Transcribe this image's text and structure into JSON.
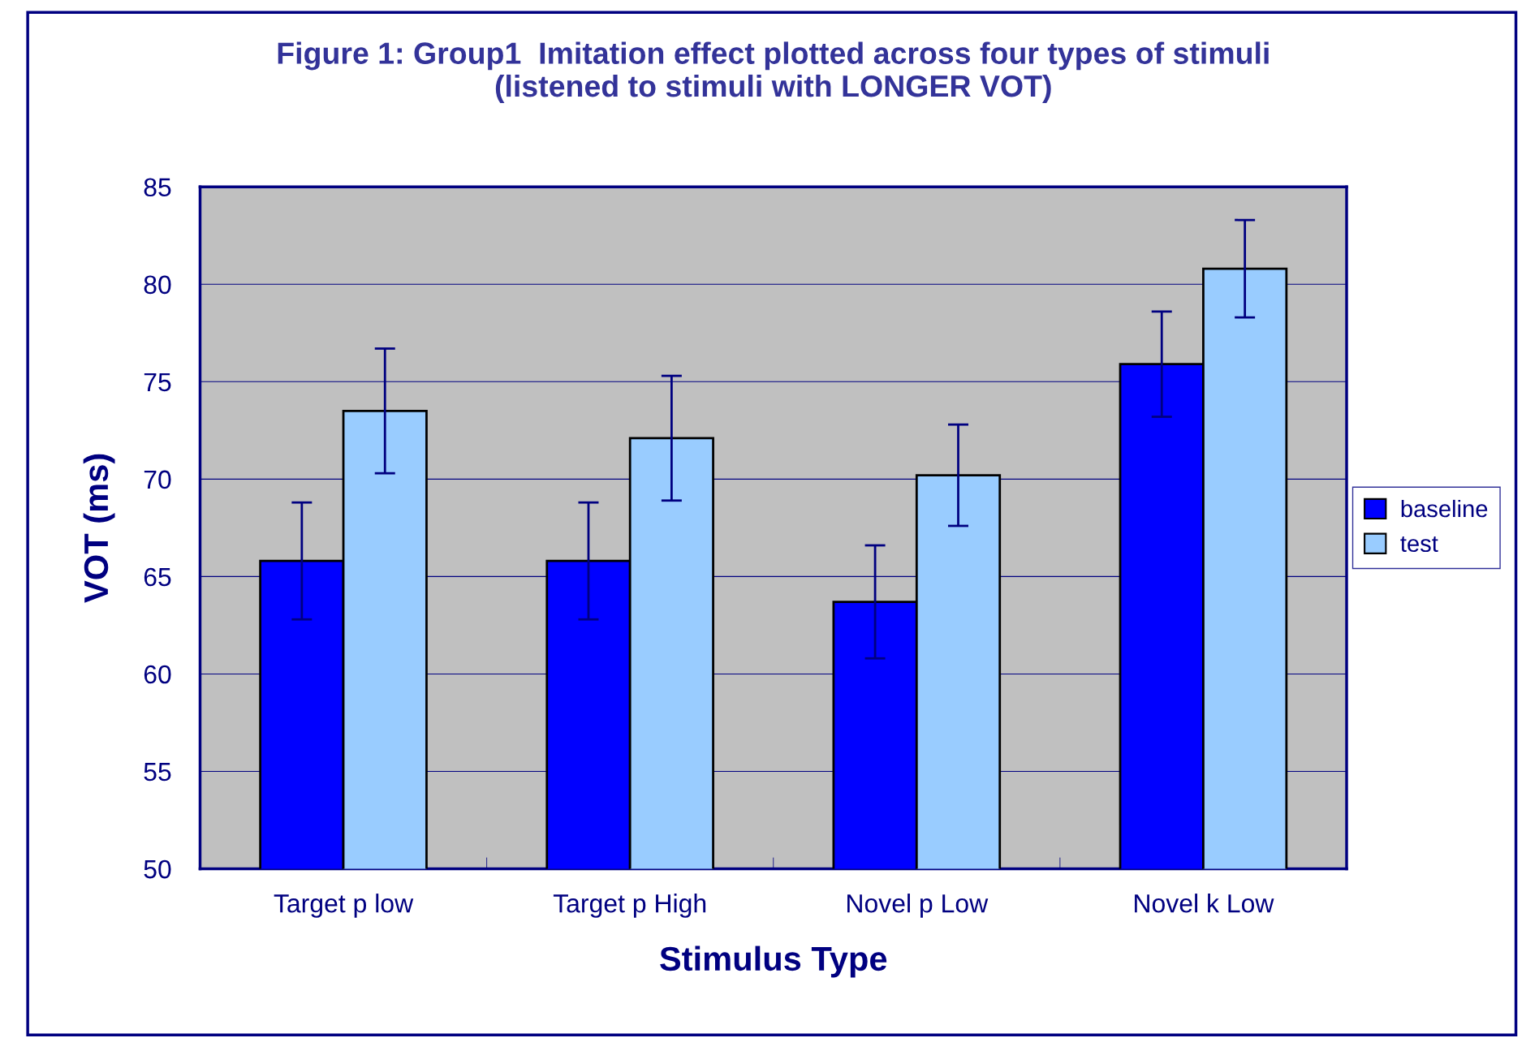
{
  "chart_data": {
    "type": "bar",
    "title": "Figure 1: Group1  Imitation effect plotted across four types of stimuli\n(listened to stimuli with LONGER VOT)",
    "xlabel": "Stimulus Type",
    "ylabel": "VOT (ms)",
    "categories": [
      "Target p low",
      "Target p High",
      "Novel p Low",
      "Novel k Low"
    ],
    "series": [
      {
        "name": "baseline",
        "color": "#0000ff",
        "values": [
          65.8,
          65.8,
          63.7,
          75.9
        ],
        "errors": [
          3.0,
          3.0,
          2.9,
          2.7
        ]
      },
      {
        "name": "test",
        "color": "#99ccff",
        "values": [
          73.5,
          72.1,
          70.2,
          80.8
        ],
        "errors": [
          3.2,
          3.2,
          2.6,
          2.5
        ]
      }
    ],
    "ylim": [
      50,
      85
    ],
    "yticks": [
      50,
      55,
      60,
      65,
      70,
      75,
      80,
      85
    ],
    "grid": "y",
    "legend": "right"
  }
}
